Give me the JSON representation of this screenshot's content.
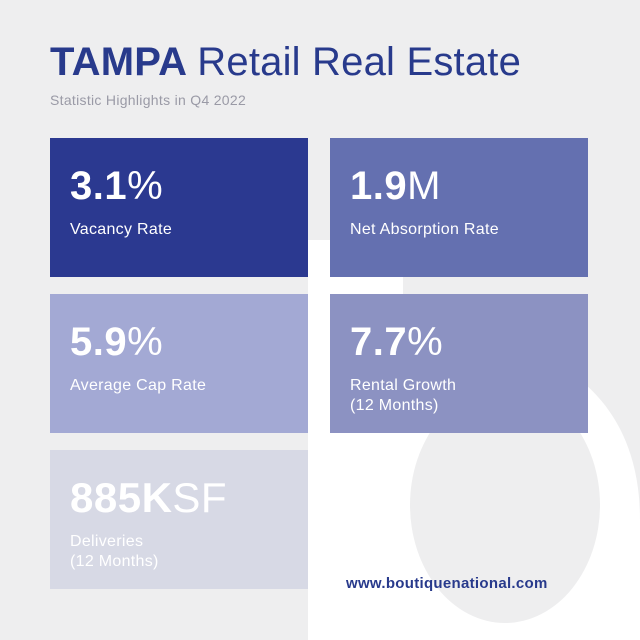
{
  "header": {
    "title_bold": "TAMPA",
    "title_rest": "Retail Real Estate",
    "subtitle": "Statistic Highlights in Q4 2022"
  },
  "stats": [
    {
      "value": "3.1",
      "unit": "%",
      "label": "Vacancy Rate"
    },
    {
      "value": "1.9",
      "unit": "M",
      "label": "Net Absorption Rate"
    },
    {
      "value": "5.9",
      "unit": "%",
      "label": "Average Cap Rate"
    },
    {
      "value": "7.7",
      "unit": "%",
      "label_line1": "Rental Growth",
      "label_line2": "(12 Months)"
    },
    {
      "value": "885K",
      "unit": "SF",
      "label_line1": "Deliveries",
      "label_line2": "(12 Months)"
    }
  ],
  "footer": {
    "url": "www.boutiquenational.com"
  },
  "colors": {
    "background": "#eeeeef",
    "brand_blue": "#283a8c",
    "card_1": "#2b3990",
    "card_2": "#6470b0",
    "card_3": "#a3a9d4",
    "card_4": "#8c92c2",
    "card_5": "#d7d9e5",
    "watermark": "#ffffff"
  },
  "icons": {
    "watermark": "brand-logo-watermark"
  }
}
